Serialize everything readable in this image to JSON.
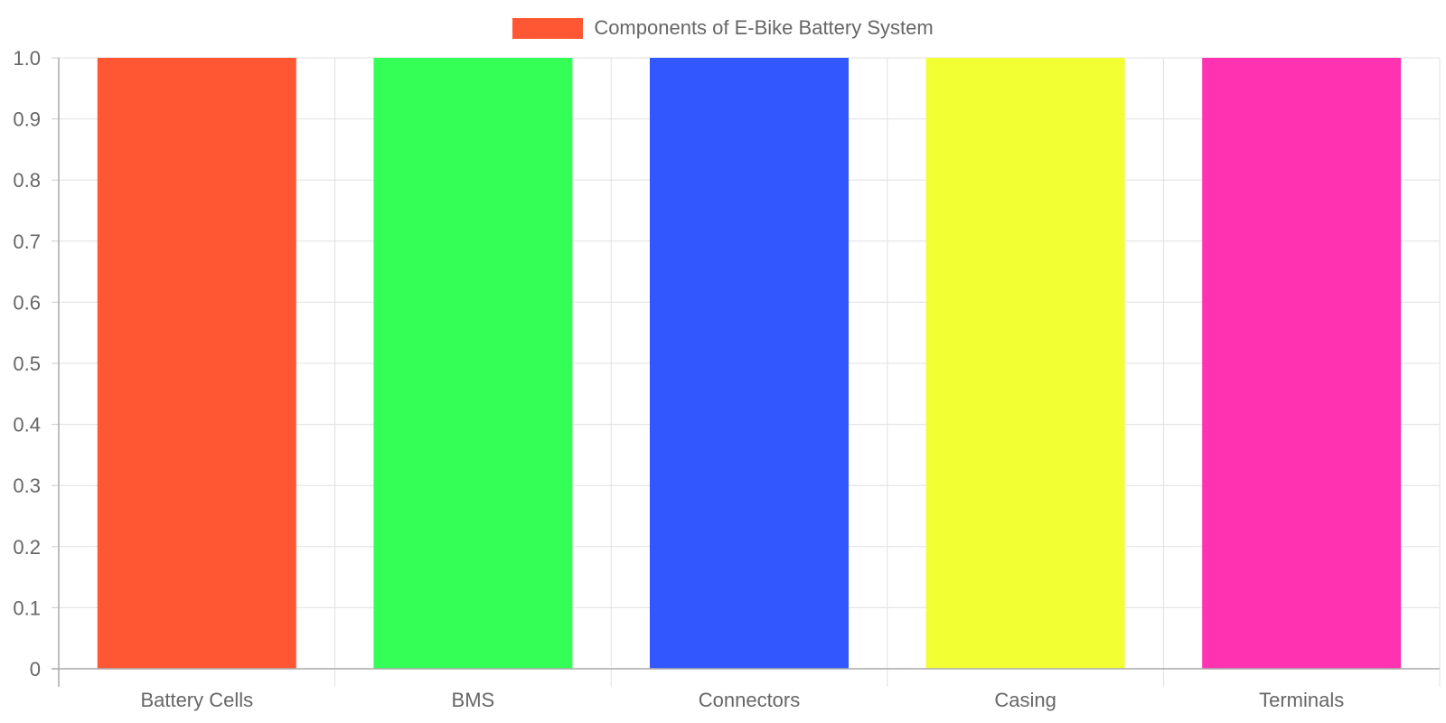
{
  "chart_data": {
    "type": "bar",
    "categories": [
      "Battery Cells",
      "BMS",
      "Connectors",
      "Casing",
      "Terminals"
    ],
    "series": [
      {
        "name": "Components of E-Bike Battery System",
        "values": [
          1,
          1,
          1,
          1,
          1
        ],
        "colors": [
          "#FF5733",
          "#33FF57",
          "#3357FF",
          "#F1FF33",
          "#FF33B2"
        ]
      }
    ],
    "yticks": [
      "0",
      "0.1",
      "0.2",
      "0.3",
      "0.4",
      "0.5",
      "0.6",
      "0.7",
      "0.8",
      "0.9",
      "1.0"
    ],
    "ylim": [
      0,
      1
    ],
    "grid": true,
    "legend_position": "top-center",
    "legend_color": "#FF5733"
  }
}
